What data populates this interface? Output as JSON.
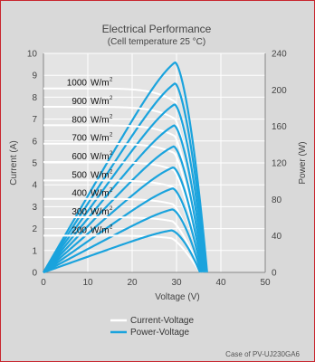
{
  "chart_data": {
    "type": "line",
    "title": "Electrical  Performance",
    "subtitle": "(Cell temperature 25 °C)",
    "xlabel": "Voltage  (V)",
    "ylabel_left": "Current  (A)",
    "ylabel_right": "Power  (W)",
    "xlim": [
      0,
      50
    ],
    "ylim_left": [
      0,
      10
    ],
    "ylim_right": [
      0,
      240
    ],
    "x_ticks": [
      0,
      10,
      20,
      30,
      40,
      50
    ],
    "y_ticks_left": [
      0,
      1,
      2,
      3,
      4,
      5,
      6,
      7,
      8,
      9,
      10
    ],
    "y_ticks_right": [
      0,
      40,
      80,
      120,
      160,
      200,
      240
    ],
    "grid": true,
    "irradiance_labels": [
      {
        "value": "1000",
        "unit": "W/m",
        "sup": "2"
      },
      {
        "value": "900",
        "unit": "W/m",
        "sup": "2"
      },
      {
        "value": "800",
        "unit": "W/m",
        "sup": "2"
      },
      {
        "value": "700",
        "unit": "W/m",
        "sup": "2"
      },
      {
        "value": "600",
        "unit": "W/m",
        "sup": "2"
      },
      {
        "value": "500",
        "unit": "W/m",
        "sup": "2"
      },
      {
        "value": "400",
        "unit": "W/m",
        "sup": "2"
      },
      {
        "value": "300",
        "unit": "W/m",
        "sup": "2"
      },
      {
        "value": "200",
        "unit": "W/m",
        "sup": "2"
      }
    ],
    "series": [
      {
        "name": "Current-Voltage",
        "color": "#ffffff",
        "curves": [
          {
            "isc": 8.4,
            "vmp": 29.6,
            "imp": 7.8,
            "voc": 36.9
          },
          {
            "isc": 7.56,
            "vmp": 29.6,
            "imp": 7.02,
            "voc": 36.7
          },
          {
            "isc": 6.72,
            "vmp": 29.5,
            "imp": 6.24,
            "voc": 36.5
          },
          {
            "isc": 5.88,
            "vmp": 29.4,
            "imp": 5.46,
            "voc": 36.3
          },
          {
            "isc": 5.04,
            "vmp": 29.3,
            "imp": 4.68,
            "voc": 36.1
          },
          {
            "isc": 4.2,
            "vmp": 29.2,
            "imp": 3.9,
            "voc": 35.9
          },
          {
            "isc": 3.36,
            "vmp": 29.1,
            "imp": 3.12,
            "voc": 35.7
          },
          {
            "isc": 2.52,
            "vmp": 29.0,
            "imp": 2.34,
            "voc": 35.5
          },
          {
            "isc": 1.68,
            "vmp": 28.8,
            "imp": 1.56,
            "voc": 35.3
          }
        ]
      },
      {
        "name": "Power-Voltage",
        "color": "#1aa3dd",
        "curves": [
          {
            "pmax": 230
          },
          {
            "pmax": 207
          },
          {
            "pmax": 184
          },
          {
            "pmax": 161
          },
          {
            "pmax": 138
          },
          {
            "pmax": 115
          },
          {
            "pmax": 92
          },
          {
            "pmax": 69
          },
          {
            "pmax": 46
          }
        ]
      }
    ],
    "legend": [
      {
        "label": "Current-Voltage",
        "color": "#ffffff"
      },
      {
        "label": "Power-Voltage",
        "color": "#1aa3dd"
      }
    ],
    "legend_position": "bottom-center"
  },
  "caption": "Case of PV-UJ230GA6"
}
